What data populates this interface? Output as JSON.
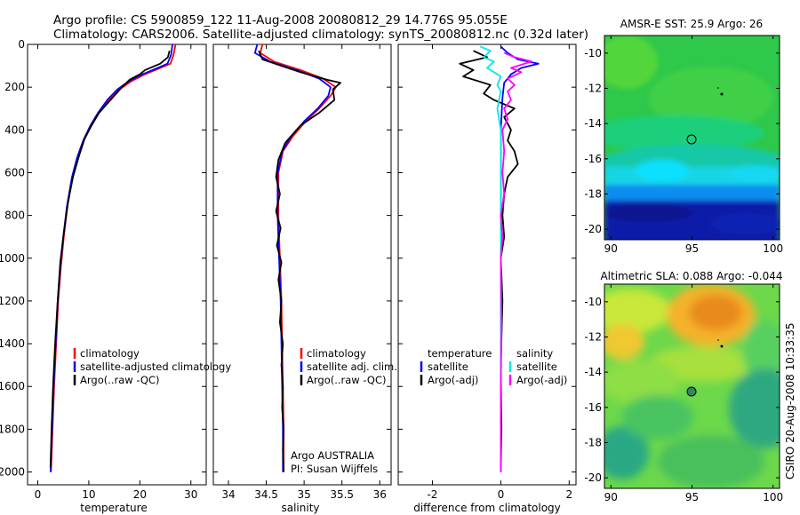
{
  "title": {
    "line1": "Argo profile: CS 5900859_122 11-Aug-2008 20080812_29 14.776S 95.055E",
    "line2": "Climatology: CARS2006. Satellite-adjusted climatology: synTS_20080812.nc (0.32d later)"
  },
  "credit": "CSIRO 20-Aug-2008 10:33:35",
  "colors": {
    "red": "#ff0000",
    "blue": "#0000ff",
    "black": "#000000",
    "cyan": "#00e8e8",
    "magenta": "#ff00ff"
  },
  "chart_data": [
    {
      "type": "line",
      "name": "temperature-panel",
      "xlabel": "temperature",
      "ylabel": "",
      "xlim": [
        -2,
        33
      ],
      "ylim": [
        2060,
        0
      ],
      "xticks": [
        0,
        10,
        20,
        30
      ],
      "yticks": [
        0,
        200,
        400,
        600,
        800,
        1000,
        1200,
        1400,
        1600,
        1800,
        2000
      ],
      "legend": [
        "climatology",
        "satellite-adjusted climatology",
        "Argo(..raw -QC)"
      ],
      "series": [
        {
          "name": "climatology",
          "color": "red",
          "points": [
            [
              27,
              0
            ],
            [
              26.6,
              50
            ],
            [
              26,
              90
            ],
            [
              24,
              110
            ],
            [
              21,
              140
            ],
            [
              18.5,
              170
            ],
            [
              16,
              210
            ],
            [
              14,
              260
            ],
            [
              12,
              320
            ],
            [
              10.5,
              380
            ],
            [
              9,
              450
            ],
            [
              7.8,
              530
            ],
            [
              6.8,
              620
            ],
            [
              5.8,
              760
            ],
            [
              5.1,
              900
            ],
            [
              4.5,
              1050
            ],
            [
              4,
              1200
            ],
            [
              3.6,
              1400
            ],
            [
              3.2,
              1600
            ],
            [
              2.9,
              1800
            ],
            [
              2.6,
              2000
            ]
          ]
        },
        {
          "name": "satellite-adjusted climatology",
          "color": "blue",
          "points": [
            [
              26.4,
              0
            ],
            [
              26.1,
              50
            ],
            [
              25.4,
              90
            ],
            [
              23.5,
              110
            ],
            [
              20.5,
              140
            ],
            [
              18,
              170
            ],
            [
              15.6,
              210
            ],
            [
              13.6,
              260
            ],
            [
              11.8,
              320
            ],
            [
              10.3,
              380
            ],
            [
              8.9,
              450
            ],
            [
              7.7,
              530
            ],
            [
              6.7,
              620
            ],
            [
              5.7,
              760
            ],
            [
              5,
              900
            ],
            [
              4.4,
              1050
            ],
            [
              3.9,
              1200
            ],
            [
              3.5,
              1400
            ],
            [
              3.1,
              1600
            ],
            [
              2.8,
              1800
            ],
            [
              2.5,
              2000
            ]
          ]
        },
        {
          "name": "Argo(..raw -QC)",
          "color": "black",
          "points": [
            [
              25.8,
              30
            ],
            [
              25.5,
              60
            ],
            [
              24,
              90
            ],
            [
              21,
              120
            ],
            [
              20,
              140
            ],
            [
              18,
              165
            ],
            [
              16.5,
              200
            ],
            [
              15,
              240
            ],
            [
              13.5,
              280
            ],
            [
              12,
              320
            ],
            [
              10.5,
              380
            ],
            [
              9.2,
              440
            ],
            [
              8.1,
              520
            ],
            [
              6.9,
              620
            ],
            [
              5.9,
              740
            ],
            [
              5.1,
              880
            ],
            [
              4.4,
              1020
            ],
            [
              3.9,
              1200
            ],
            [
              3.4,
              1400
            ],
            [
              3,
              1600
            ],
            [
              2.7,
              1800
            ],
            [
              2.5,
              1980
            ]
          ]
        }
      ]
    },
    {
      "type": "line",
      "name": "salinity-panel",
      "xlabel": "salinity",
      "ylabel": "",
      "xlim": [
        33.8,
        36.15
      ],
      "ylim": [
        2060,
        0
      ],
      "xticks": [
        34,
        34.5,
        35,
        35.5,
        36
      ],
      "yticks": [
        0,
        200,
        400,
        600,
        800,
        1000,
        1200,
        1400,
        1600,
        1800,
        2000
      ],
      "legend": [
        "climatology",
        "satellite adj. clim.",
        "Argo(..raw -QC)"
      ],
      "annotation": [
        "Argo AUSTRALIA",
        "PI: Susan Wijffels"
      ],
      "series": [
        {
          "name": "climatology",
          "color": "red",
          "points": [
            [
              34.45,
              0
            ],
            [
              34.42,
              40
            ],
            [
              34.6,
              80
            ],
            [
              34.95,
              120
            ],
            [
              35.25,
              160
            ],
            [
              35.42,
              200
            ],
            [
              35.35,
              240
            ],
            [
              35.2,
              300
            ],
            [
              35.02,
              360
            ],
            [
              34.85,
              430
            ],
            [
              34.72,
              500
            ],
            [
              34.66,
              600
            ],
            [
              34.66,
              800
            ],
            [
              34.68,
              1000
            ],
            [
              34.7,
              1200
            ],
            [
              34.71,
              1400
            ],
            [
              34.72,
              1600
            ],
            [
              34.73,
              1800
            ],
            [
              34.73,
              2000
            ]
          ]
        },
        {
          "name": "satellite adj. clim.",
          "color": "blue",
          "points": [
            [
              34.38,
              0
            ],
            [
              34.35,
              40
            ],
            [
              34.55,
              80
            ],
            [
              34.9,
              120
            ],
            [
              35.2,
              160
            ],
            [
              35.35,
              200
            ],
            [
              35.32,
              240
            ],
            [
              35.18,
              300
            ],
            [
              35,
              360
            ],
            [
              34.83,
              430
            ],
            [
              34.71,
              500
            ],
            [
              34.65,
              600
            ],
            [
              34.65,
              800
            ],
            [
              34.67,
              1000
            ],
            [
              34.69,
              1200
            ],
            [
              34.7,
              1400
            ],
            [
              34.71,
              1600
            ],
            [
              34.72,
              1800
            ],
            [
              34.72,
              2000
            ]
          ]
        },
        {
          "name": "Argo(..raw -QC)",
          "color": "black",
          "points": [
            [
              34.4,
              30
            ],
            [
              34.45,
              70
            ],
            [
              34.7,
              100
            ],
            [
              34.95,
              130
            ],
            [
              35.15,
              150
            ],
            [
              35.3,
              165
            ],
            [
              35.48,
              180
            ],
            [
              35.38,
              210
            ],
            [
              35.4,
              260
            ],
            [
              35.2,
              320
            ],
            [
              34.95,
              380
            ],
            [
              34.75,
              460
            ],
            [
              34.66,
              540
            ],
            [
              34.63,
              620
            ],
            [
              34.68,
              700
            ],
            [
              34.63,
              780
            ],
            [
              34.69,
              860
            ],
            [
              34.64,
              940
            ],
            [
              34.7,
              1020
            ],
            [
              34.66,
              1100
            ],
            [
              34.7,
              1200
            ],
            [
              34.68,
              1300
            ],
            [
              34.72,
              1400
            ],
            [
              34.7,
              1500
            ],
            [
              34.72,
              1600
            ],
            [
              34.71,
              1700
            ],
            [
              34.73,
              1800
            ],
            [
              34.72,
              1900
            ],
            [
              34.73,
              2000
            ]
          ]
        }
      ]
    },
    {
      "type": "line",
      "name": "difference-panel",
      "xlabel": "difference from climatology",
      "ylabel": "",
      "xlim": [
        -3,
        2.2
      ],
      "ylim": [
        2060,
        0
      ],
      "xticks": [
        -2,
        0,
        2
      ],
      "yticks": [
        0,
        200,
        400,
        600,
        800,
        1000,
        1200,
        1400,
        1600,
        1800,
        2000
      ],
      "legend_headings": [
        "temperature",
        "salinity"
      ],
      "legend": [
        "satellite",
        "Argo(-adj)",
        "satellite",
        "Argo(-adj)"
      ],
      "series": [
        {
          "name": "temperature satellite",
          "color": "blue",
          "points": [
            [
              0,
              10
            ],
            [
              0.2,
              40
            ],
            [
              0.5,
              70
            ],
            [
              1.1,
              90
            ],
            [
              0.6,
              110
            ],
            [
              0.3,
              140
            ],
            [
              0.1,
              180
            ],
            [
              0.05,
              250
            ],
            [
              0,
              400
            ],
            [
              0,
              600
            ],
            [
              0,
              1000
            ],
            [
              0,
              1500
            ],
            [
              0,
              2000
            ]
          ]
        },
        {
          "name": "temperature Argo(-adj)",
          "color": "black",
          "points": [
            [
              -0.8,
              30
            ],
            [
              -0.4,
              60
            ],
            [
              -1.2,
              90
            ],
            [
              -0.8,
              120
            ],
            [
              -1.1,
              150
            ],
            [
              -0.3,
              190
            ],
            [
              -0.5,
              230
            ],
            [
              -0.2,
              260
            ],
            [
              0.4,
              300
            ],
            [
              0.1,
              340
            ],
            [
              0.3,
              400
            ],
            [
              0.2,
              450
            ],
            [
              0.4,
              500
            ],
            [
              0.5,
              560
            ],
            [
              0.2,
              620
            ],
            [
              0.1,
              700
            ],
            [
              0.05,
              800
            ],
            [
              0.1,
              900
            ],
            [
              0,
              1000
            ],
            [
              0.05,
              1200
            ],
            [
              0,
              1500
            ],
            [
              0.02,
              1800
            ],
            [
              0,
              2000
            ]
          ]
        },
        {
          "name": "salinity satellite",
          "color": "cyan",
          "points": [
            [
              -0.6,
              10
            ],
            [
              -0.3,
              30
            ],
            [
              -0.5,
              60
            ],
            [
              -0.2,
              80
            ],
            [
              -0.4,
              110
            ],
            [
              0,
              150
            ],
            [
              -0.1,
              190
            ],
            [
              0,
              220
            ],
            [
              -0.1,
              300
            ],
            [
              0,
              400
            ],
            [
              0,
              600
            ],
            [
              0,
              1000
            ],
            [
              0,
              1500
            ],
            [
              0,
              2000
            ]
          ]
        },
        {
          "name": "salinity Argo(-adj)",
          "color": "magenta",
          "points": [
            [
              0.1,
              40
            ],
            [
              0.4,
              60
            ],
            [
              0.9,
              80
            ],
            [
              0.3,
              110
            ],
            [
              0.6,
              130
            ],
            [
              0.2,
              160
            ],
            [
              0.4,
              190
            ],
            [
              0.2,
              220
            ],
            [
              0.3,
              260
            ],
            [
              0.1,
              300
            ],
            [
              0.2,
              350
            ],
            [
              0.05,
              400
            ],
            [
              0.1,
              500
            ],
            [
              0.05,
              600
            ],
            [
              0.1,
              700
            ],
            [
              0,
              800
            ],
            [
              0.05,
              900
            ],
            [
              0,
              1000
            ],
            [
              0.02,
              1300
            ],
            [
              0,
              1600
            ],
            [
              0,
              2000
            ]
          ]
        }
      ]
    },
    {
      "type": "heatmap",
      "name": "sst-map",
      "title": "AMSR-E SST: 25.9 Argo: 26",
      "xlim": [
        89.6,
        100.4
      ],
      "ylim": [
        -20.6,
        -9.0
      ],
      "xticks": [
        90,
        95,
        100
      ],
      "yticks": [
        -10,
        -12,
        -14,
        -16,
        -18,
        -20
      ],
      "float_position": [
        95.055,
        -14.776
      ]
    },
    {
      "type": "heatmap",
      "name": "sla-map",
      "title": "Altimetric SLA: 0.088 Argo: -0.044",
      "xlim": [
        89.6,
        100.4
      ],
      "ylim": [
        -20.6,
        -9.0
      ],
      "xticks": [
        90,
        95,
        100
      ],
      "yticks": [
        -10,
        -12,
        -14,
        -16,
        -18,
        -20
      ],
      "float_position": [
        95.055,
        -14.776
      ]
    }
  ]
}
